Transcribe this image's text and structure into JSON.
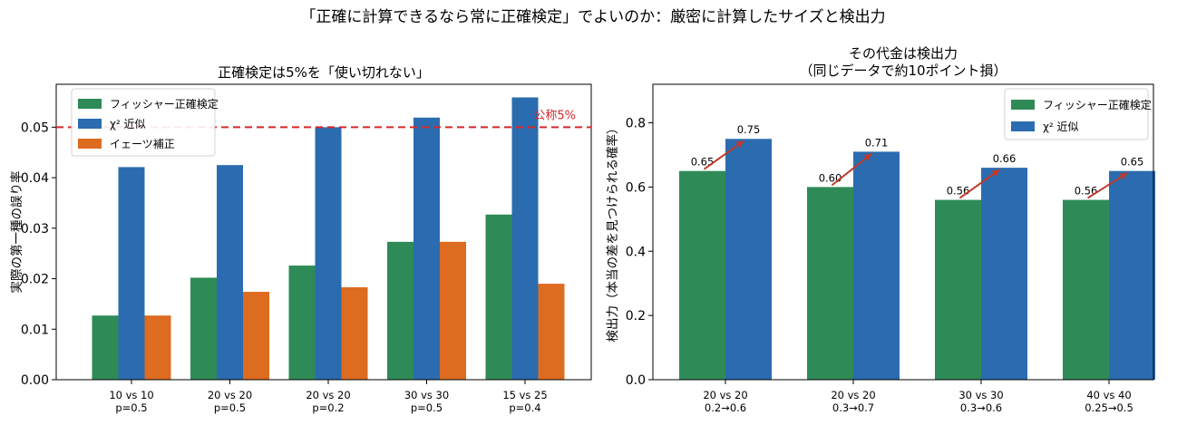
{
  "suptitle": "「正確に計算できるなら常に正確検定」でよいのか：厳密に計算したサイズと検出力",
  "chart_data": [
    {
      "type": "bar",
      "title": "正確検定は5%を「使い切れない」",
      "xlabel": "",
      "ylabel": "実際の第一種の誤り率",
      "categories": [
        [
          "10 vs 10",
          "p=0.5"
        ],
        [
          "20 vs 20",
          "p=0.5"
        ],
        [
          "20 vs 20",
          "p=0.2"
        ],
        [
          "30 vs 30",
          "p=0.5"
        ],
        [
          "15 vs 25",
          "p=0.4"
        ]
      ],
      "series": [
        {
          "name": "フィッシャー正確検定",
          "color": "#2e8b57",
          "values": [
            0.0127,
            0.0202,
            0.0226,
            0.0273,
            0.0327
          ]
        },
        {
          "name": "χ² 近似",
          "color": "#2b6cb0",
          "values": [
            0.0421,
            0.0425,
            0.05,
            0.0519,
            0.0559
          ]
        },
        {
          "name": "イェーツ補正",
          "color": "#dd6b20",
          "values": [
            0.0127,
            0.0174,
            0.0183,
            0.0273,
            0.019
          ]
        }
      ],
      "ylim": [
        0,
        0.0585
      ],
      "yticks": [
        "0.00",
        "0.01",
        "0.02",
        "0.03",
        "0.04",
        "0.05"
      ],
      "reference_line": {
        "value": 0.05,
        "label": "公称5%",
        "color": "#d62728",
        "style": "dashed"
      },
      "legend_position": "top-left",
      "grid": false
    },
    {
      "type": "bar",
      "title": "その代金は検出力",
      "subtitle": "（同じデータで約10ポイント損）",
      "xlabel": "",
      "ylabel": "検出力（本当の差を見つけられる確率）",
      "categories": [
        [
          "20 vs 20",
          "0.2→0.6"
        ],
        [
          "20 vs 20",
          "0.3→0.7"
        ],
        [
          "30 vs 30",
          "0.3→0.6"
        ],
        [
          "40 vs 40",
          "0.25→0.5"
        ]
      ],
      "series": [
        {
          "name": "フィッシャー正確検定",
          "color": "#2e8b57",
          "values": [
            0.65,
            0.6,
            0.56,
            0.56
          ]
        },
        {
          "name": "χ² 近似",
          "color": "#2b6cb0",
          "values": [
            0.75,
            0.71,
            0.66,
            0.65
          ]
        }
      ],
      "data_labels": {
        "フィッシャー正確検定": [
          "0.65",
          "0.60",
          "0.56",
          "0.56"
        ],
        "χ² 近似": [
          "0.75",
          "0.71",
          "0.66",
          "0.65"
        ]
      },
      "arrow_color": "#c0392b",
      "ylim": [
        0,
        0.92
      ],
      "yticks": [
        "0.0",
        "0.2",
        "0.4",
        "0.6",
        "0.8"
      ],
      "legend_position": "top-right",
      "grid": false
    }
  ]
}
